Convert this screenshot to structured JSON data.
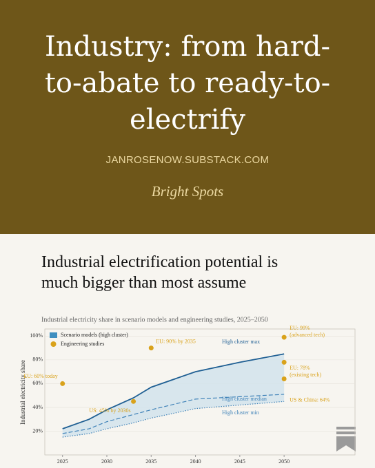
{
  "header": {
    "title": "Industry: from hard-to-abate to ready-to-electrify",
    "site": "JANROSENOW.SUBSTACK.COM",
    "section": "Bright Spots"
  },
  "heading": "Industrial electrification potential is much bigger than most assume",
  "chart_data": {
    "type": "line",
    "title": "Industrial electricity share in scenario models and engineering studies, 2025–2050",
    "y_label": "Industrial electricity share",
    "xlim": [
      2023,
      2058
    ],
    "ylim": [
      0,
      106
    ],
    "xticks": [
      2025,
      2030,
      2035,
      2040,
      2045,
      2050
    ],
    "yticks": [
      {
        "value": 20,
        "label": "20%"
      },
      {
        "value": 40,
        "label": "40%"
      },
      {
        "value": 60,
        "label": "60%"
      },
      {
        "value": 80,
        "label": "80%"
      },
      {
        "value": 100,
        "label": "100%"
      }
    ],
    "grid": true,
    "legend": [
      {
        "label": "Scenario models (high cluster)",
        "color": "#3f8fc0"
      },
      {
        "label": "Engineering studies",
        "color": "#d9a21b"
      }
    ],
    "x": [
      2025,
      2028,
      2030,
      2033,
      2035,
      2040,
      2045,
      2050
    ],
    "band_color": "#cfe2ec",
    "series": [
      {
        "name": "High cluster max",
        "color": "#1f5f93",
        "style": "solid",
        "values": [
          22,
          30,
          38,
          48,
          57,
          70,
          78,
          85
        ]
      },
      {
        "name": "High cluster median",
        "color": "#3f82b8",
        "style": "dashed",
        "values": [
          18,
          22,
          28,
          34,
          38,
          47,
          49,
          51
        ]
      },
      {
        "name": "High cluster min",
        "color": "#3f82b8",
        "style": "dotted",
        "values": [
          15,
          18,
          22,
          27,
          31,
          39,
          42,
          45
        ]
      }
    ],
    "points": [
      {
        "x": 2025,
        "y": 60,
        "label": "EU: 60% today"
      },
      {
        "x": 2033,
        "y": 45,
        "label": "US: 45% by 2030s"
      },
      {
        "x": 2035,
        "y": 90,
        "label": "EU: 90% by 2035"
      },
      {
        "x": 2050,
        "y": 99,
        "label": "EU: 99%",
        "note": "(advanced tech)"
      },
      {
        "x": 2050,
        "y": 78,
        "label": "EU: 78%",
        "note": "(existing tech)"
      },
      {
        "x": 2050,
        "y": 64,
        "label": "US & China: 64%"
      }
    ]
  }
}
